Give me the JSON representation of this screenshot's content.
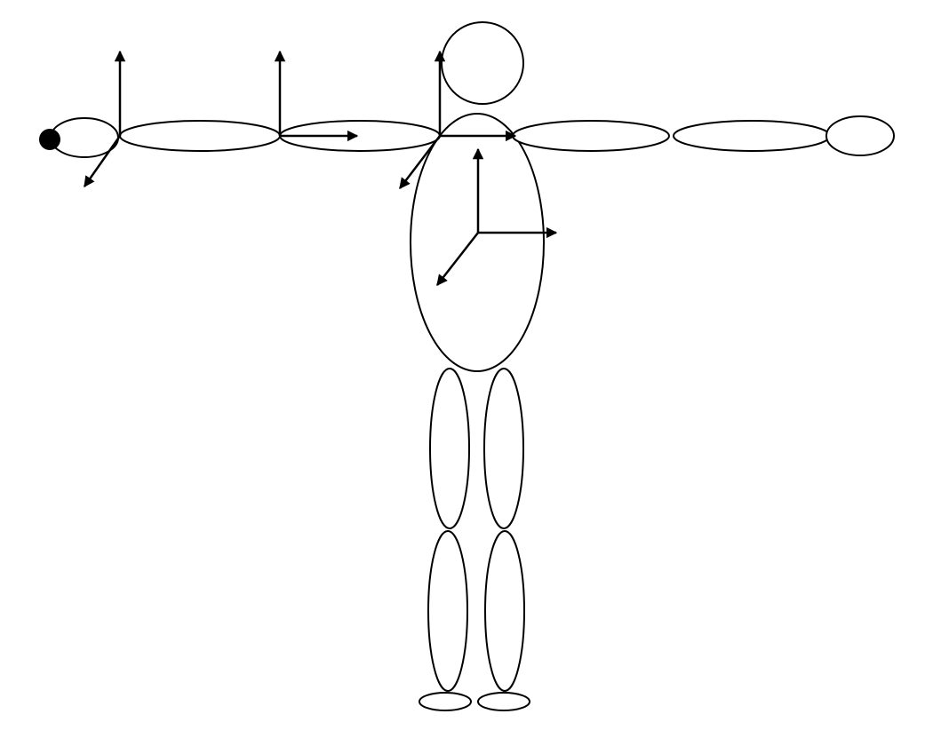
{
  "diagram": {
    "subject": "humanoid-body-segment-model",
    "stroke_color": "#000000",
    "fill_color": "#ffffff",
    "segments": [
      "head",
      "torso",
      "right-hand",
      "right-forearm",
      "right-upper-arm",
      "left-upper-arm",
      "left-forearm",
      "left-hand",
      "right-thigh",
      "left-thigh",
      "right-shank",
      "left-shank",
      "right-foot",
      "left-foot"
    ],
    "coordinate_frames": [
      "wrist-frame",
      "elbow-frame",
      "shoulder-frame",
      "torso-frame"
    ],
    "markers": [
      "end-effector-marker"
    ]
  }
}
